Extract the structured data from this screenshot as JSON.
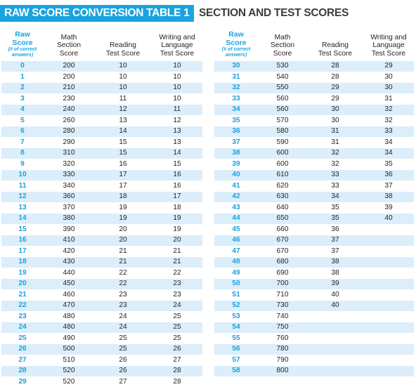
{
  "title": {
    "left": "RAW SCORE CONVERSION TABLE 1",
    "right": "SECTION AND TEST SCORES"
  },
  "headers": {
    "raw_main": "Raw\nScore",
    "raw_sub": "(# of correct\nanswers)",
    "math": "Math\nSection\nScore",
    "reading": "Reading\nTest Score",
    "writing": "Writing and\nLanguage\nTest Score"
  },
  "left_rows": [
    [
      "0",
      "200",
      "10",
      "10"
    ],
    [
      "1",
      "200",
      "10",
      "10"
    ],
    [
      "2",
      "210",
      "10",
      "10"
    ],
    [
      "3",
      "230",
      "11",
      "10"
    ],
    [
      "4",
      "240",
      "12",
      "11"
    ],
    [
      "5",
      "260",
      "13",
      "12"
    ],
    [
      "6",
      "280",
      "14",
      "13"
    ],
    [
      "7",
      "290",
      "15",
      "13"
    ],
    [
      "8",
      "310",
      "15",
      "14"
    ],
    [
      "9",
      "320",
      "16",
      "15"
    ],
    [
      "10",
      "330",
      "17",
      "16"
    ],
    [
      "11",
      "340",
      "17",
      "16"
    ],
    [
      "12",
      "360",
      "18",
      "17"
    ],
    [
      "13",
      "370",
      "19",
      "18"
    ],
    [
      "14",
      "380",
      "19",
      "19"
    ],
    [
      "15",
      "390",
      "20",
      "19"
    ],
    [
      "16",
      "410",
      "20",
      "20"
    ],
    [
      "17",
      "420",
      "21",
      "21"
    ],
    [
      "18",
      "430",
      "21",
      "21"
    ],
    [
      "19",
      "440",
      "22",
      "22"
    ],
    [
      "20",
      "450",
      "22",
      "23"
    ],
    [
      "21",
      "460",
      "23",
      "23"
    ],
    [
      "22",
      "470",
      "23",
      "24"
    ],
    [
      "23",
      "480",
      "24",
      "25"
    ],
    [
      "24",
      "480",
      "24",
      "25"
    ],
    [
      "25",
      "490",
      "25",
      "25"
    ],
    [
      "26",
      "500",
      "25",
      "26"
    ],
    [
      "27",
      "510",
      "26",
      "27"
    ],
    [
      "28",
      "520",
      "26",
      "28"
    ],
    [
      "29",
      "520",
      "27",
      "28"
    ]
  ],
  "right_rows": [
    [
      "30",
      "530",
      "28",
      "29"
    ],
    [
      "31",
      "540",
      "28",
      "30"
    ],
    [
      "32",
      "550",
      "29",
      "30"
    ],
    [
      "33",
      "560",
      "29",
      "31"
    ],
    [
      "34",
      "560",
      "30",
      "32"
    ],
    [
      "35",
      "570",
      "30",
      "32"
    ],
    [
      "36",
      "580",
      "31",
      "33"
    ],
    [
      "37",
      "590",
      "31",
      "34"
    ],
    [
      "38",
      "600",
      "32",
      "34"
    ],
    [
      "39",
      "600",
      "32",
      "35"
    ],
    [
      "40",
      "610",
      "33",
      "36"
    ],
    [
      "41",
      "620",
      "33",
      "37"
    ],
    [
      "42",
      "630",
      "34",
      "38"
    ],
    [
      "43",
      "640",
      "35",
      "39"
    ],
    [
      "44",
      "650",
      "35",
      "40"
    ],
    [
      "45",
      "660",
      "36",
      ""
    ],
    [
      "46",
      "670",
      "37",
      ""
    ],
    [
      "47",
      "670",
      "37",
      ""
    ],
    [
      "48",
      "680",
      "38",
      ""
    ],
    [
      "49",
      "690",
      "38",
      ""
    ],
    [
      "50",
      "700",
      "39",
      ""
    ],
    [
      "51",
      "710",
      "40",
      ""
    ],
    [
      "52",
      "730",
      "40",
      ""
    ],
    [
      "53",
      "740",
      "",
      ""
    ],
    [
      "54",
      "750",
      "",
      ""
    ],
    [
      "55",
      "760",
      "",
      ""
    ],
    [
      "56",
      "780",
      "",
      ""
    ],
    [
      "57",
      "790",
      "",
      ""
    ],
    [
      "58",
      "800",
      "",
      ""
    ]
  ]
}
